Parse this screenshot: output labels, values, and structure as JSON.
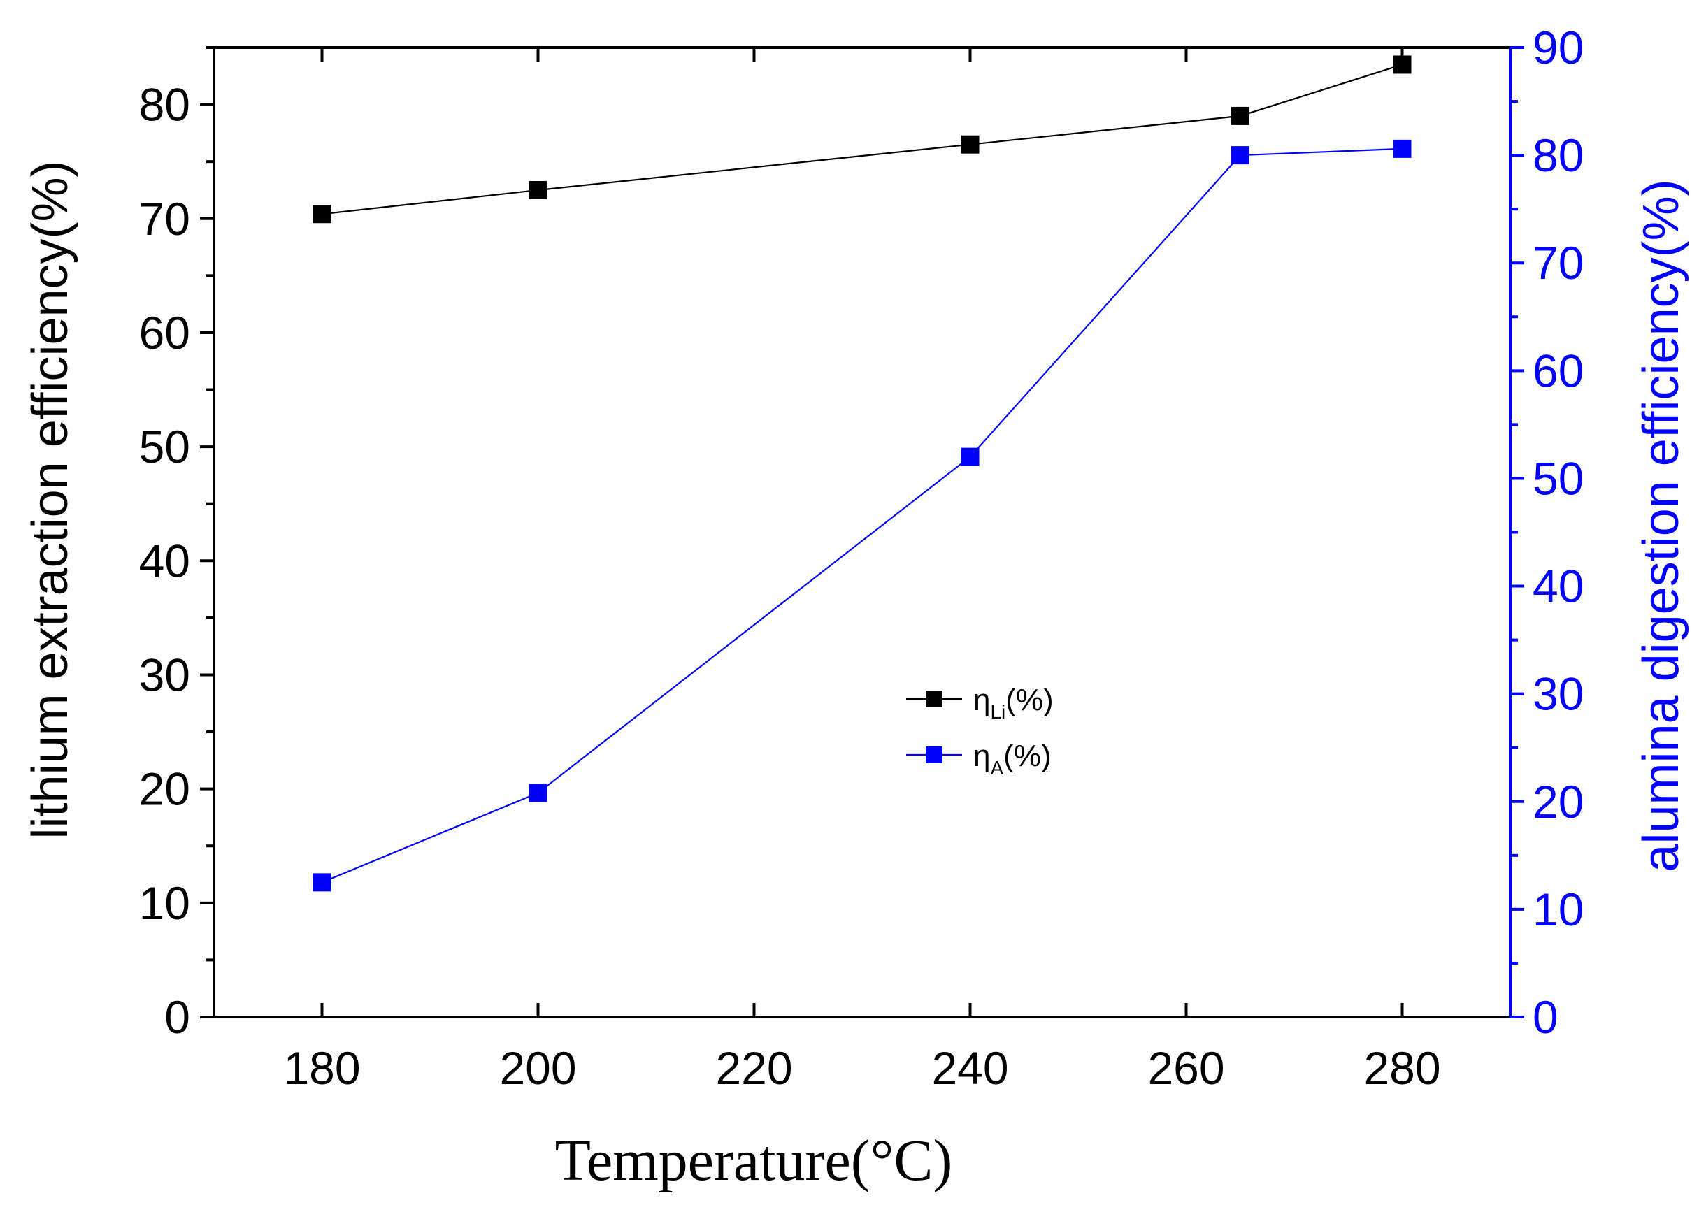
{
  "chart_data": {
    "type": "line",
    "x": [
      180,
      200,
      240,
      265,
      280
    ],
    "xlim": [
      170,
      290
    ],
    "xticks": [
      180,
      200,
      220,
      240,
      260,
      280
    ],
    "xlabel": "Temperature(°C)",
    "ylabel_left": "lithium extraction efficiency(%)",
    "ylim_left": [
      0,
      85
    ],
    "yticks_left": [
      0,
      10,
      20,
      30,
      40,
      50,
      60,
      70,
      80
    ],
    "ylabel_right": "alumina digestion efficiency(%)",
    "ylim_right": [
      0,
      90
    ],
    "yticks_right": [
      0,
      10,
      20,
      30,
      40,
      50,
      60,
      70,
      80,
      90
    ],
    "series": [
      {
        "name": "ηLi(%)",
        "label_main": "η",
        "label_sub": "Li",
        "label_tail": "(%)",
        "axis": "left",
        "color": "#000000",
        "marker": "square",
        "values": [
          70.4,
          72.5,
          76.5,
          79.0,
          83.5
        ]
      },
      {
        "name": "ηA(%)",
        "label_main": "η",
        "label_sub": "A",
        "label_tail": "(%)",
        "axis": "right",
        "color": "#0000ff",
        "marker": "square",
        "values": [
          12.5,
          20.8,
          52.0,
          80.0,
          80.6
        ]
      }
    ],
    "legend": "center",
    "grid": false
  }
}
